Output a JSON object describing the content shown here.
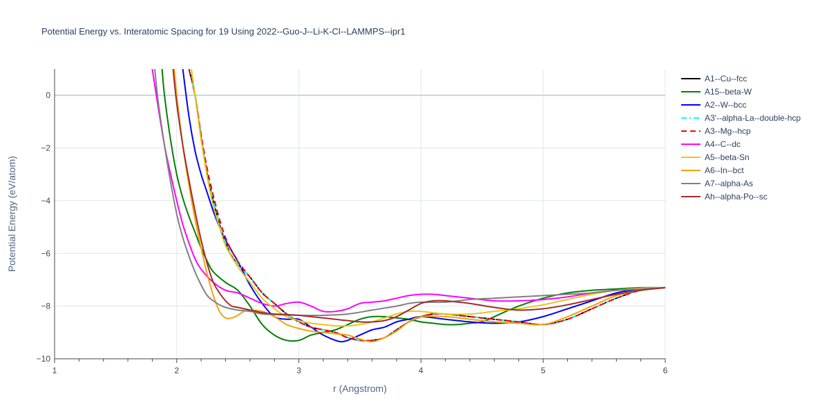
{
  "chart_data": {
    "type": "line",
    "title": "Potential Energy vs. Interatomic Spacing for 19 Using 2022--Guo-J--Li-K-Cl--LAMMPS--ipr1",
    "xlabel": "r (Angstrom)",
    "ylabel": "Potential Energy (eV/atom)",
    "xlim": [
      1,
      6
    ],
    "ylim": [
      -10,
      1
    ],
    "xticks": [
      1,
      2,
      3,
      4,
      5,
      6
    ],
    "yticks": [
      -10,
      -8,
      -6,
      -4,
      -2,
      0
    ],
    "ytick_labels": [
      "−10",
      "−8",
      "−6",
      "−4",
      "−2",
      "0"
    ],
    "grid": true,
    "legend_position": "right",
    "series": [
      {
        "name": "A1--Cu--fcc",
        "color": "#000000",
        "dash": "solid",
        "x": [
          2.1,
          2.15,
          2.2,
          2.25,
          2.3,
          2.35,
          2.4,
          2.45,
          2.5,
          2.6,
          2.7,
          2.8,
          2.9,
          3.0,
          3.1,
          3.2,
          3.3,
          3.4,
          3.5,
          3.6,
          3.7,
          3.8,
          3.9,
          4.0,
          4.1,
          4.2,
          4.4,
          4.6,
          4.8,
          5.0,
          5.2,
          5.4,
          5.6,
          5.8,
          6.0
        ],
        "y": [
          1.0,
          0.0,
          -1.6,
          -3.0,
          -4.0,
          -4.9,
          -5.6,
          -6.1,
          -6.4,
          -6.9,
          -7.5,
          -7.9,
          -8.3,
          -8.6,
          -8.8,
          -8.9,
          -9.0,
          -9.2,
          -9.3,
          -9.3,
          -9.2,
          -8.9,
          -8.6,
          -8.4,
          -8.3,
          -8.3,
          -8.4,
          -8.5,
          -8.6,
          -8.7,
          -8.5,
          -8.1,
          -7.7,
          -7.4,
          -7.3
        ]
      },
      {
        "name": "A15--beta-W",
        "color": "#008000",
        "dash": "solid",
        "x": [
          1.88,
          1.9,
          1.95,
          2.0,
          2.05,
          2.1,
          2.15,
          2.2,
          2.25,
          2.3,
          2.4,
          2.5,
          2.6,
          2.7,
          2.8,
          2.9,
          3.0,
          3.1,
          3.2,
          3.3,
          3.4,
          3.5,
          3.6,
          3.7,
          3.8,
          3.9,
          4.0,
          4.1,
          4.2,
          4.3,
          4.4,
          4.5,
          4.6,
          4.8,
          5.0,
          5.2,
          5.4,
          5.6,
          5.8,
          6.0
        ],
        "y": [
          1.0,
          0.0,
          -1.7,
          -3.0,
          -3.9,
          -4.6,
          -5.2,
          -5.8,
          -6.3,
          -6.7,
          -7.1,
          -7.4,
          -8.0,
          -8.7,
          -9.1,
          -9.3,
          -9.3,
          -9.1,
          -9.0,
          -8.9,
          -8.7,
          -8.5,
          -8.4,
          -8.4,
          -8.45,
          -8.5,
          -8.6,
          -8.65,
          -8.7,
          -8.7,
          -8.65,
          -8.6,
          -8.4,
          -8.0,
          -7.7,
          -7.5,
          -7.4,
          -7.35,
          -7.3,
          -7.3
        ]
      },
      {
        "name": "A2--W--bcc",
        "color": "#0000ff",
        "dash": "solid",
        "x": [
          2.05,
          2.1,
          2.15,
          2.2,
          2.25,
          2.3,
          2.35,
          2.4,
          2.45,
          2.5,
          2.6,
          2.7,
          2.8,
          2.9,
          3.0,
          3.1,
          3.2,
          3.3,
          3.35,
          3.4,
          3.5,
          3.6,
          3.7,
          3.8,
          3.9,
          4.0,
          4.2,
          4.4,
          4.6,
          4.8,
          5.0,
          5.2,
          5.4,
          5.6,
          5.8,
          6.0
        ],
        "y": [
          1.0,
          -0.8,
          -2.1,
          -3.0,
          -3.7,
          -4.4,
          -5.0,
          -5.5,
          -5.9,
          -6.3,
          -7.2,
          -7.9,
          -8.4,
          -8.5,
          -8.5,
          -8.8,
          -9.1,
          -9.3,
          -9.35,
          -9.3,
          -9.1,
          -8.9,
          -8.8,
          -8.6,
          -8.5,
          -8.4,
          -8.5,
          -8.6,
          -8.65,
          -8.6,
          -8.4,
          -8.1,
          -7.8,
          -7.5,
          -7.35,
          -7.3
        ]
      },
      {
        "name": "A3'--alpha-La--double-hcp",
        "color": "#00ffff",
        "dash": "dashdot",
        "x": [
          2.1,
          2.15,
          2.2,
          2.25,
          2.3,
          2.35,
          2.4,
          2.45,
          2.5,
          2.6,
          2.7,
          2.8,
          2.9,
          3.0,
          3.1,
          3.2,
          3.3,
          3.4,
          3.5,
          3.6,
          3.7,
          3.8,
          3.9,
          4.0,
          4.1,
          4.2,
          4.4,
          4.6,
          4.8,
          5.0,
          5.2,
          5.4,
          5.6,
          5.8,
          6.0
        ],
        "y": [
          1.0,
          0.0,
          -1.6,
          -3.0,
          -4.0,
          -4.9,
          -5.6,
          -6.1,
          -6.4,
          -6.9,
          -7.5,
          -7.9,
          -8.3,
          -8.6,
          -8.8,
          -8.9,
          -9.0,
          -9.2,
          -9.3,
          -9.3,
          -9.2,
          -8.9,
          -8.6,
          -8.4,
          -8.3,
          -8.3,
          -8.4,
          -8.5,
          -8.6,
          -8.7,
          -8.5,
          -8.1,
          -7.7,
          -7.4,
          -7.3
        ]
      },
      {
        "name": "A3--Mg--hcp",
        "color": "#ff0000",
        "dash": "dash",
        "x": [
          2.1,
          2.15,
          2.2,
          2.25,
          2.3,
          2.35,
          2.4,
          2.45,
          2.5,
          2.6,
          2.7,
          2.8,
          2.9,
          3.0,
          3.1,
          3.2,
          3.3,
          3.4,
          3.5,
          3.6,
          3.7,
          3.8,
          3.9,
          4.0,
          4.1,
          4.2,
          4.4,
          4.6,
          4.8,
          5.0,
          5.2,
          5.4,
          5.6,
          5.8,
          6.0
        ],
        "y": [
          1.0,
          0.0,
          -1.5,
          -2.8,
          -3.8,
          -4.7,
          -5.4,
          -5.9,
          -6.3,
          -6.9,
          -7.5,
          -7.9,
          -8.3,
          -8.6,
          -8.8,
          -8.9,
          -9.0,
          -9.2,
          -9.3,
          -9.3,
          -9.2,
          -8.9,
          -8.6,
          -8.4,
          -8.3,
          -8.3,
          -8.4,
          -8.5,
          -8.6,
          -8.7,
          -8.5,
          -8.1,
          -7.7,
          -7.4,
          -7.3
        ]
      },
      {
        "name": "A4--C--dc",
        "color": "#ff00ff",
        "dash": "solid",
        "x": [
          1.8,
          1.85,
          1.9,
          1.95,
          2.0,
          2.05,
          2.1,
          2.15,
          2.2,
          2.3,
          2.4,
          2.5,
          2.6,
          2.7,
          2.8,
          2.9,
          3.0,
          3.1,
          3.2,
          3.3,
          3.4,
          3.5,
          3.6,
          3.7,
          3.8,
          3.9,
          4.0,
          4.1,
          4.2,
          4.4,
          4.6,
          4.8,
          5.0,
          5.2,
          5.4,
          5.6,
          5.8,
          6.0
        ],
        "y": [
          1.0,
          -0.5,
          -1.9,
          -3.0,
          -4.0,
          -4.9,
          -5.6,
          -6.2,
          -6.6,
          -7.1,
          -7.4,
          -7.5,
          -7.7,
          -7.9,
          -8.0,
          -7.9,
          -7.85,
          -8.0,
          -8.2,
          -8.2,
          -8.1,
          -7.9,
          -7.85,
          -7.8,
          -7.7,
          -7.6,
          -7.55,
          -7.55,
          -7.6,
          -7.7,
          -7.8,
          -7.8,
          -7.75,
          -7.65,
          -7.5,
          -7.4,
          -7.35,
          -7.3
        ]
      },
      {
        "name": "A5--beta-Sn",
        "color": "#e6c619",
        "dash": "solid",
        "x": [
          2.12,
          2.15,
          2.2,
          2.25,
          2.3,
          2.35,
          2.4,
          2.5,
          2.6,
          2.7,
          2.8,
          2.9,
          3.0,
          3.1,
          3.2,
          3.3,
          3.4,
          3.5,
          3.6,
          3.7,
          3.8,
          3.9,
          4.0,
          4.2,
          4.4,
          4.6,
          4.8,
          5.0,
          5.2,
          5.4,
          5.6,
          5.8,
          6.0
        ],
        "y": [
          1.0,
          0.0,
          -1.7,
          -3.1,
          -4.2,
          -5.0,
          -5.7,
          -6.5,
          -7.1,
          -7.7,
          -8.1,
          -8.4,
          -8.55,
          -8.65,
          -8.7,
          -8.75,
          -8.75,
          -8.7,
          -8.6,
          -8.45,
          -8.3,
          -8.2,
          -8.2,
          -8.3,
          -8.3,
          -8.2,
          -8.1,
          -7.95,
          -7.75,
          -7.55,
          -7.4,
          -7.32,
          -7.3
        ]
      },
      {
        "name": "A6--In--bct",
        "color": "#f0a30a",
        "dash": "solid",
        "x": [
          1.98,
          2.0,
          2.05,
          2.1,
          2.15,
          2.2,
          2.25,
          2.3,
          2.35,
          2.4,
          2.45,
          2.5,
          2.55,
          2.6,
          2.7,
          2.8,
          2.9,
          3.0,
          3.1,
          3.2,
          3.3,
          3.4,
          3.5,
          3.6,
          3.7,
          3.8,
          3.9,
          4.0,
          4.2,
          4.4,
          4.6,
          4.8,
          5.0,
          5.2,
          5.4,
          5.6,
          5.8,
          6.0
        ],
        "y": [
          1.0,
          0.0,
          -1.9,
          -3.4,
          -4.7,
          -5.8,
          -6.8,
          -7.6,
          -8.2,
          -8.45,
          -8.45,
          -8.35,
          -8.2,
          -8.15,
          -8.2,
          -8.4,
          -8.7,
          -8.85,
          -8.95,
          -9.0,
          -9.05,
          -9.1,
          -9.25,
          -9.35,
          -9.2,
          -8.95,
          -8.6,
          -8.4,
          -8.4,
          -8.5,
          -8.6,
          -8.65,
          -8.7,
          -8.4,
          -8.0,
          -7.6,
          -7.4,
          -7.3
        ]
      },
      {
        "name": "A7--alpha-As",
        "color": "#808080",
        "dash": "solid",
        "x": [
          1.82,
          1.85,
          1.9,
          1.95,
          2.0,
          2.05,
          2.1,
          2.15,
          2.2,
          2.25,
          2.3,
          2.35,
          2.4,
          2.5,
          2.6,
          2.7,
          2.8,
          3.0,
          3.2,
          3.4,
          3.6,
          3.8,
          3.9,
          4.0,
          4.2,
          4.4,
          4.6,
          4.8,
          5.0,
          5.2,
          5.4,
          5.6,
          5.8,
          6.0
        ],
        "y": [
          1.0,
          -0.3,
          -1.9,
          -3.3,
          -4.5,
          -5.4,
          -6.1,
          -6.7,
          -7.2,
          -7.6,
          -7.8,
          -7.95,
          -8.05,
          -8.15,
          -8.2,
          -8.3,
          -8.32,
          -8.35,
          -8.35,
          -8.3,
          -8.15,
          -8.0,
          -7.9,
          -7.85,
          -7.85,
          -7.75,
          -7.7,
          -7.65,
          -7.6,
          -7.55,
          -7.5,
          -7.4,
          -7.35,
          -7.3
        ]
      },
      {
        "name": "Ah--alpha-Po--sc",
        "color": "#a52a2a",
        "dash": "solid",
        "x": [
          1.97,
          2.0,
          2.05,
          2.1,
          2.15,
          2.2,
          2.25,
          2.3,
          2.35,
          2.4,
          2.45,
          2.5,
          2.6,
          2.7,
          2.8,
          2.9,
          3.0,
          3.1,
          3.2,
          3.3,
          3.4,
          3.5,
          3.6,
          3.7,
          3.8,
          3.9,
          4.0,
          4.1,
          4.2,
          4.4,
          4.6,
          4.8,
          5.0,
          5.2,
          5.4,
          5.6,
          5.8,
          6.0
        ],
        "y": [
          1.0,
          -0.3,
          -1.9,
          -3.2,
          -4.4,
          -5.5,
          -6.4,
          -7.1,
          -7.5,
          -7.8,
          -8.0,
          -8.05,
          -8.15,
          -8.25,
          -8.3,
          -8.32,
          -8.35,
          -8.4,
          -8.45,
          -8.5,
          -8.55,
          -8.6,
          -8.6,
          -8.55,
          -8.4,
          -8.15,
          -7.9,
          -7.8,
          -7.8,
          -7.9,
          -8.05,
          -8.15,
          -8.1,
          -7.95,
          -7.75,
          -7.55,
          -7.4,
          -7.3
        ]
      }
    ]
  }
}
